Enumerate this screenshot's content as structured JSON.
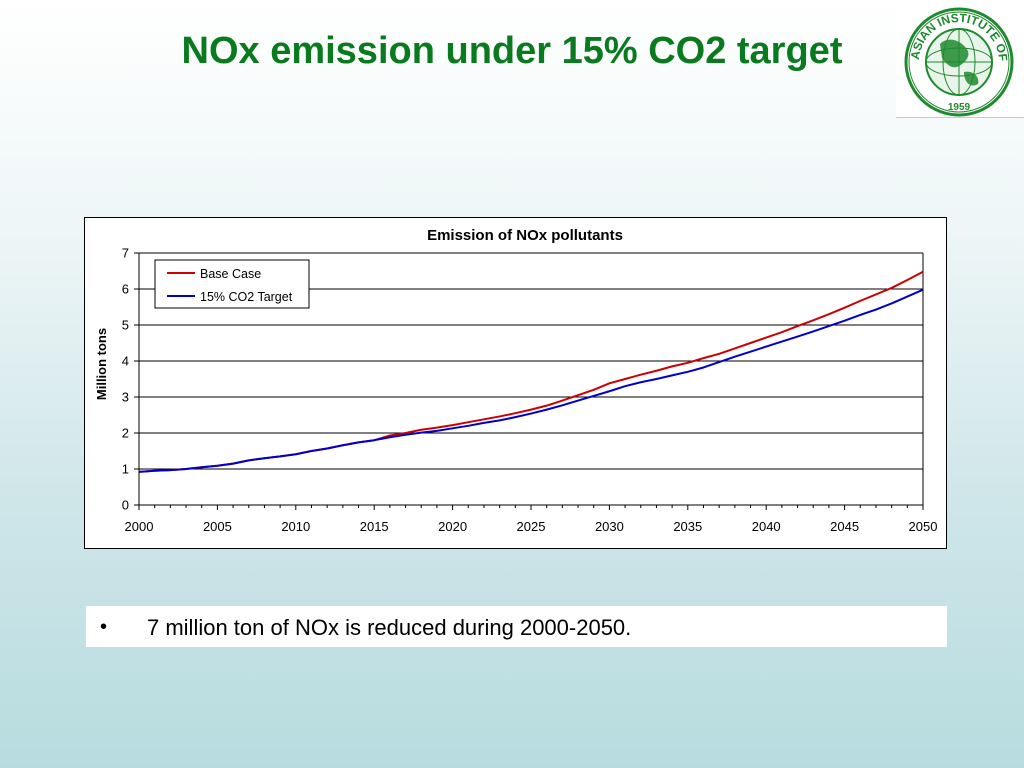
{
  "slide": {
    "title": "NOx emission under 15% CO2 target",
    "bullet_marker": "•",
    "bullet_text": "7 million ton of NOx is reduced during 2000-2050."
  },
  "logo": {
    "ring_text": "ASIAN INSTITUTE OF TECHNOLOGY",
    "year": "1959",
    "color": "#1f8a2e"
  },
  "colors": {
    "title": "#0a7a1f",
    "base_case": "#cc0000",
    "target": "#0000cc"
  },
  "chart_data": {
    "type": "line",
    "title": "Emission of NOx pollutants",
    "xlabel": "",
    "ylabel": "Million tons",
    "xlim": [
      2000,
      2050
    ],
    "ylim": [
      0,
      7
    ],
    "x_ticks": [
      2000,
      2005,
      2010,
      2015,
      2020,
      2025,
      2030,
      2035,
      2040,
      2045,
      2050
    ],
    "y_ticks": [
      0,
      1,
      2,
      3,
      4,
      5,
      6,
      7
    ],
    "grid": "horizontal",
    "legend": "top-left",
    "x": [
      2000,
      2001,
      2002,
      2003,
      2004,
      2005,
      2006,
      2007,
      2008,
      2009,
      2010,
      2011,
      2012,
      2013,
      2014,
      2015,
      2016,
      2017,
      2018,
      2019,
      2020,
      2021,
      2022,
      2023,
      2024,
      2025,
      2026,
      2027,
      2028,
      2029,
      2030,
      2031,
      2032,
      2033,
      2034,
      2035,
      2036,
      2037,
      2038,
      2039,
      2040,
      2041,
      2042,
      2043,
      2044,
      2045,
      2046,
      2047,
      2048,
      2049,
      2050
    ],
    "series": [
      {
        "name": "Base Case",
        "color": "#cc0000",
        "values": [
          0.92,
          0.95,
          0.97,
          1.0,
          1.05,
          1.09,
          1.15,
          1.24,
          1.3,
          1.35,
          1.41,
          1.5,
          1.57,
          1.66,
          1.74,
          1.8,
          1.93,
          2.0,
          2.09,
          2.15,
          2.22,
          2.3,
          2.38,
          2.46,
          2.55,
          2.65,
          2.76,
          2.9,
          3.05,
          3.2,
          3.38,
          3.5,
          3.62,
          3.73,
          3.85,
          3.95,
          4.08,
          4.2,
          4.35,
          4.5,
          4.65,
          4.8,
          4.97,
          5.13,
          5.3,
          5.48,
          5.67,
          5.85,
          6.03,
          6.25,
          6.48
        ]
      },
      {
        "name": "15% CO2 Target",
        "color": "#0000cc",
        "values": [
          0.92,
          0.95,
          0.97,
          1.0,
          1.05,
          1.09,
          1.15,
          1.24,
          1.3,
          1.35,
          1.41,
          1.5,
          1.57,
          1.66,
          1.74,
          1.8,
          1.88,
          1.95,
          2.01,
          2.06,
          2.13,
          2.2,
          2.28,
          2.35,
          2.44,
          2.54,
          2.65,
          2.77,
          2.9,
          3.03,
          3.16,
          3.3,
          3.41,
          3.5,
          3.6,
          3.7,
          3.82,
          3.97,
          4.12,
          4.26,
          4.4,
          4.54,
          4.68,
          4.82,
          4.97,
          5.12,
          5.28,
          5.43,
          5.6,
          5.79,
          5.98
        ]
      }
    ]
  }
}
